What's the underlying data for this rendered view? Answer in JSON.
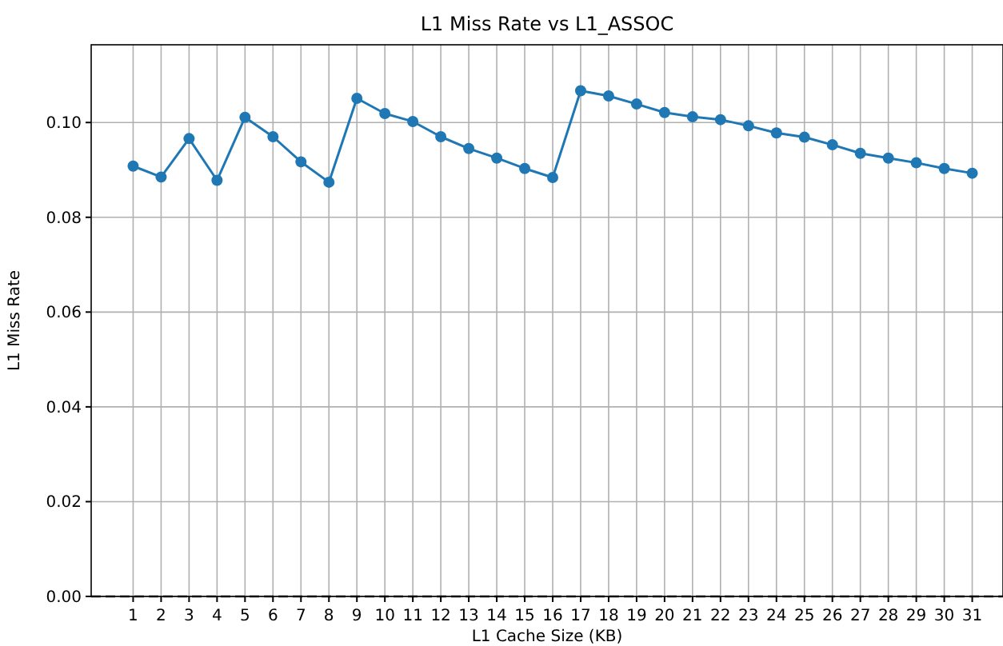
{
  "chart_data": {
    "type": "line",
    "title": "L1 Miss Rate vs L1_ASSOC",
    "xlabel": "L1 Cache Size (KB)",
    "ylabel": "L1 Miss Rate",
    "x": [
      1,
      2,
      3,
      4,
      5,
      6,
      7,
      8,
      9,
      10,
      11,
      12,
      13,
      14,
      15,
      16,
      17,
      18,
      19,
      20,
      21,
      22,
      23,
      24,
      25,
      26,
      27,
      28,
      29,
      30,
      31
    ],
    "series": [
      {
        "color": "#1f77b4",
        "values": [
          0.0908,
          0.0885,
          0.0966,
          0.0878,
          0.1011,
          0.097,
          0.0917,
          0.0874,
          0.1051,
          0.1019,
          0.1002,
          0.097,
          0.0945,
          0.0925,
          0.0903,
          0.0884,
          0.1067,
          0.1056,
          0.1039,
          0.1021,
          0.1012,
          0.1006,
          0.0993,
          0.0978,
          0.0969,
          0.0953,
          0.0935,
          0.0925,
          0.0915,
          0.0903,
          0.0893
        ]
      }
    ],
    "xlim": [
      -0.5,
      32.1
    ],
    "xticks": [
      1,
      2,
      3,
      4,
      5,
      6,
      7,
      8,
      9,
      10,
      11,
      12,
      13,
      14,
      15,
      16,
      17,
      18,
      19,
      20,
      21,
      22,
      23,
      24,
      25,
      26,
      27,
      28,
      29,
      30,
      31
    ],
    "ylim": [
      0,
      0.1164
    ],
    "yticks": [
      {
        "value": 0,
        "label": "0.00"
      },
      {
        "value": 0.02,
        "label": "0.02"
      },
      {
        "value": 0.04,
        "label": "0.04"
      },
      {
        "value": 0.06,
        "label": "0.06"
      },
      {
        "value": 0.08,
        "label": "0.08"
      },
      {
        "value": 0.1,
        "label": "0.10"
      }
    ],
    "ref_lines": [
      {
        "axis": "y",
        "value": 0,
        "color": "#000000",
        "line_style": "dashed"
      }
    ],
    "grid": true,
    "marker": "circle",
    "line_style": "solid"
  }
}
